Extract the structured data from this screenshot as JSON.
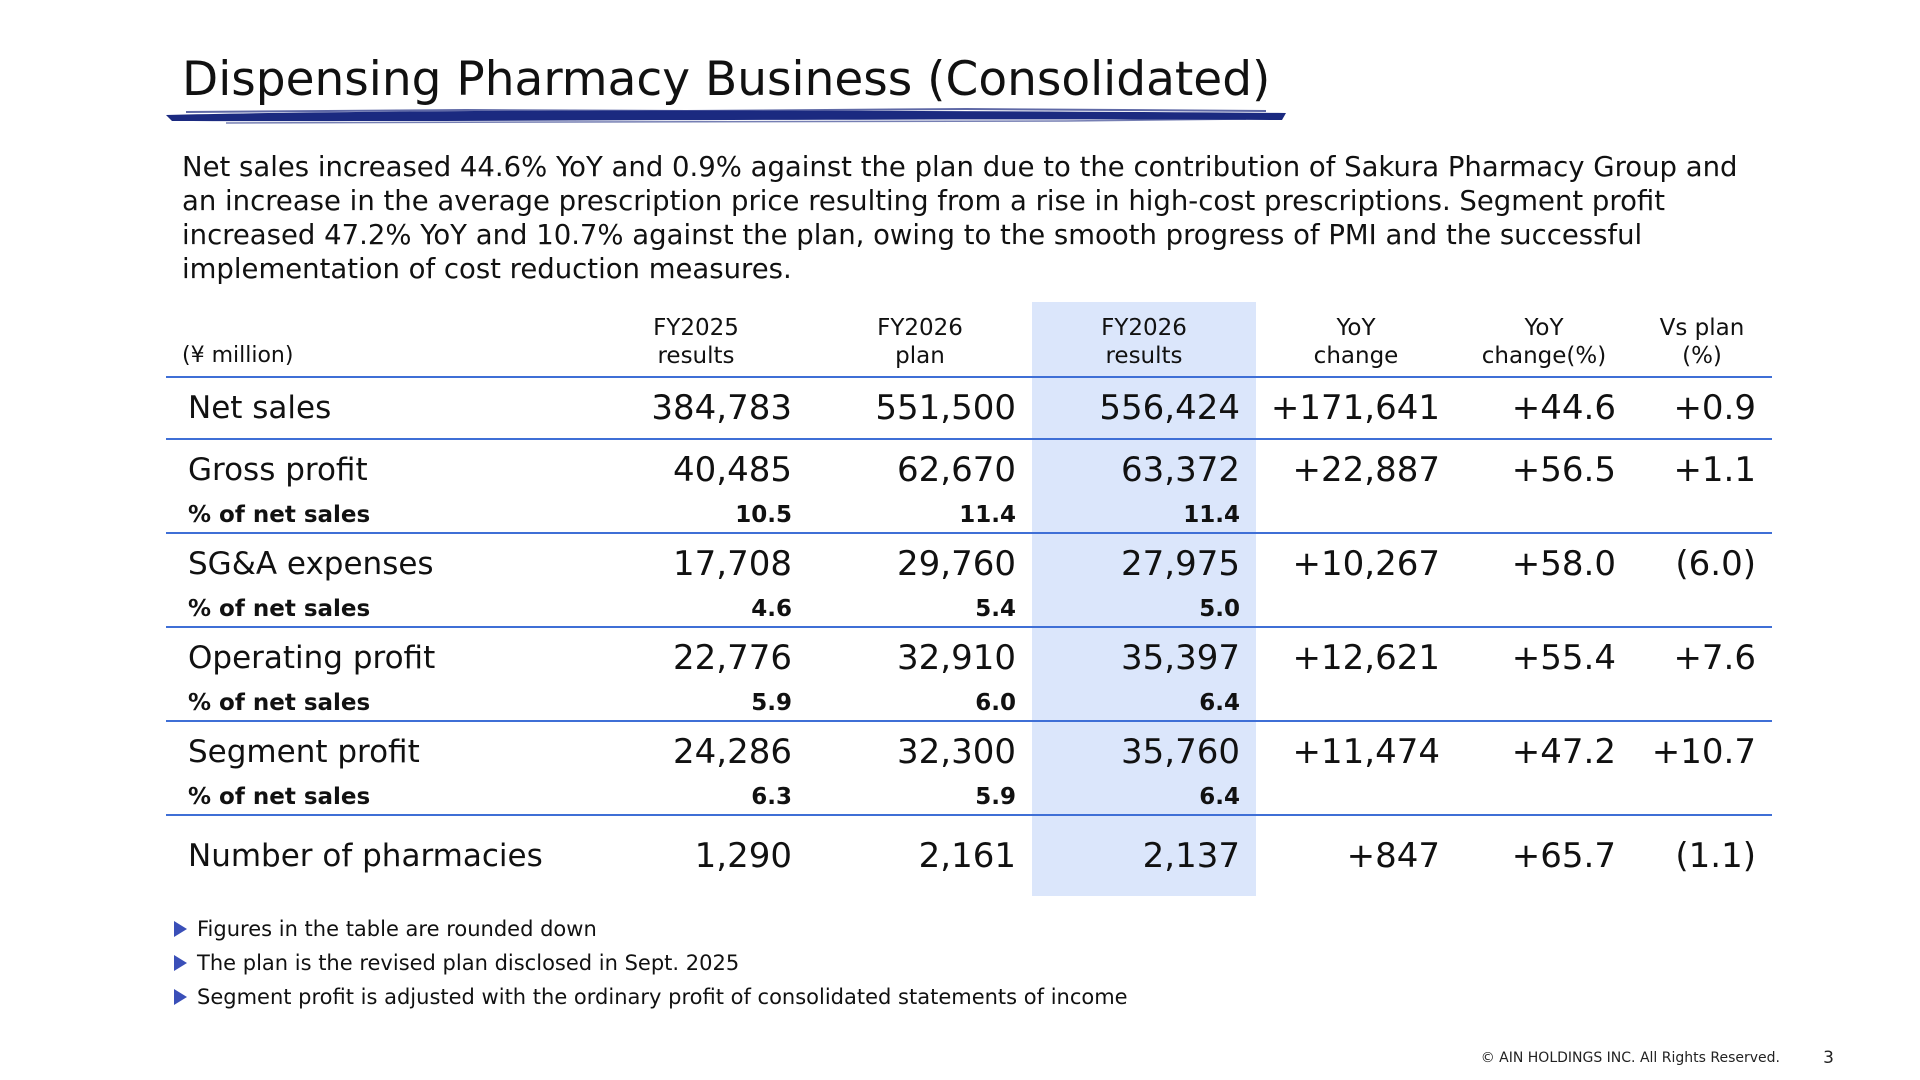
{
  "title": "Dispensing Pharmacy Business (Consolidated)",
  "lead": "Net sales increased 44.6% YoY and 0.9% against the plan due to the contribution of Sakura Pharmacy Group and an increase in the average prescription price resulting from a rise in high-cost prescriptions. Segment profit increased 47.2% YoY and 10.7% against the plan, owing to the smooth progress of PMI and the successful implementation of cost reduction measures.",
  "table": {
    "unit": "(¥ million)",
    "headers": [
      {
        "l1": "FY2025",
        "l2": "results"
      },
      {
        "l1": "FY2026",
        "l2": "plan"
      },
      {
        "l1": "FY2026",
        "l2": "results"
      },
      {
        "l1": "YoY",
        "l2": "change"
      },
      {
        "l1": "YoY",
        "l2": "change(%)"
      },
      {
        "l1": "Vs plan",
        "l2": "(%)"
      }
    ],
    "rows": [
      {
        "label": "Net sales",
        "v": [
          "384,783",
          "551,500",
          "556,424",
          "+171,641",
          "+44.6",
          "+0.9"
        ]
      },
      {
        "label": "Gross profit",
        "v": [
          "40,485",
          "62,670",
          "63,372",
          "+22,887",
          "+56.5",
          "+1.1"
        ]
      },
      {
        "label": "% of net sales",
        "v": [
          "10.5",
          "11.4",
          "11.4",
          "",
          "",
          ""
        ]
      },
      {
        "label": "SG&A expenses",
        "v": [
          "17,708",
          "29,760",
          "27,975",
          "+10,267",
          "+58.0",
          "(6.0)"
        ]
      },
      {
        "label": "% of net sales",
        "v": [
          "4.6",
          "5.4",
          "5.0",
          "",
          "",
          ""
        ]
      },
      {
        "label": "Operating profit",
        "v": [
          "22,776",
          "32,910",
          "35,397",
          "+12,621",
          "+55.4",
          "+7.6"
        ]
      },
      {
        "label": "% of net sales",
        "v": [
          "5.9",
          "6.0",
          "6.4",
          "",
          "",
          ""
        ]
      },
      {
        "label": "Segment profit",
        "v": [
          "24,286",
          "32,300",
          "35,760",
          "+11,474",
          "+47.2",
          "+10.7"
        ]
      },
      {
        "label": "% of net sales",
        "v": [
          "6.3",
          "5.9",
          "6.4",
          "",
          "",
          ""
        ]
      },
      {
        "label": "Number of pharmacies",
        "v": [
          "1,290",
          "2,161",
          "2,137",
          "+847",
          "+65.7",
          "(1.1)"
        ]
      }
    ]
  },
  "notes": [
    "Figures in the table are rounded down",
    "The plan is the revised plan disclosed in Sept. 2025",
    "Segment profit is adjusted with the ordinary profit of consolidated statements of income"
  ],
  "footer": {
    "copyright": "© AIN HOLDINGS INC. All Rights Reserved.",
    "page": "3"
  },
  "colors": {
    "accent": "#3f6fd6",
    "highlight_column": "#dbe6fb",
    "brush_stroke": "#1b2a80",
    "bullet": "#3a4fb8"
  }
}
